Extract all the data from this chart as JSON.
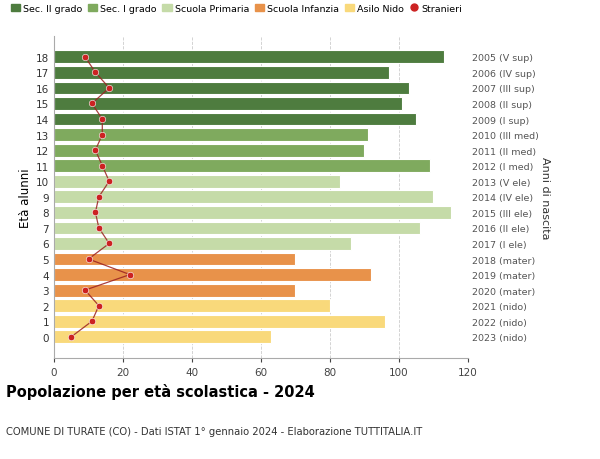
{
  "ages": [
    0,
    1,
    2,
    3,
    4,
    5,
    6,
    7,
    8,
    9,
    10,
    11,
    12,
    13,
    14,
    15,
    16,
    17,
    18
  ],
  "bar_values": [
    63,
    96,
    80,
    70,
    92,
    70,
    86,
    106,
    115,
    110,
    83,
    109,
    90,
    91,
    105,
    101,
    103,
    97,
    113
  ],
  "bar_colors": [
    "#f9d97b",
    "#f9d97b",
    "#f9d97b",
    "#e8924a",
    "#e8924a",
    "#e8924a",
    "#c5dba8",
    "#c5dba8",
    "#c5dba8",
    "#c5dba8",
    "#c5dba8",
    "#7faa5e",
    "#7faa5e",
    "#7faa5e",
    "#4e7c3f",
    "#4e7c3f",
    "#4e7c3f",
    "#4e7c3f",
    "#4e7c3f"
  ],
  "stranieri_values": [
    5,
    11,
    13,
    9,
    22,
    10,
    16,
    13,
    12,
    13,
    16,
    14,
    12,
    14,
    14,
    11,
    16,
    12,
    9
  ],
  "right_labels": [
    "2023 (nido)",
    "2022 (nido)",
    "2021 (nido)",
    "2020 (mater)",
    "2019 (mater)",
    "2018 (mater)",
    "2017 (I ele)",
    "2016 (II ele)",
    "2015 (III ele)",
    "2014 (IV ele)",
    "2013 (V ele)",
    "2012 (I med)",
    "2011 (II med)",
    "2010 (III med)",
    "2009 (I sup)",
    "2008 (II sup)",
    "2007 (III sup)",
    "2006 (IV sup)",
    "2005 (V sup)"
  ],
  "legend_labels": [
    "Sec. II grado",
    "Sec. I grado",
    "Scuola Primaria",
    "Scuola Infanzia",
    "Asilo Nido",
    "Stranieri"
  ],
  "legend_colors": [
    "#4e7c3f",
    "#7faa5e",
    "#c5dba8",
    "#e8924a",
    "#f9d97b",
    "#cc2222"
  ],
  "ylabel": "Età alunni",
  "right_ylabel": "Anni di nascita",
  "title": "Popolazione per età scolastica - 2024",
  "subtitle": "COMUNE DI TURATE (CO) - Dati ISTAT 1° gennaio 2024 - Elaborazione TUTTITALIA.IT",
  "xlim": [
    0,
    120
  ],
  "xticks": [
    0,
    20,
    40,
    60,
    80,
    100,
    120
  ],
  "background_color": "#ffffff",
  "bar_height": 0.82
}
